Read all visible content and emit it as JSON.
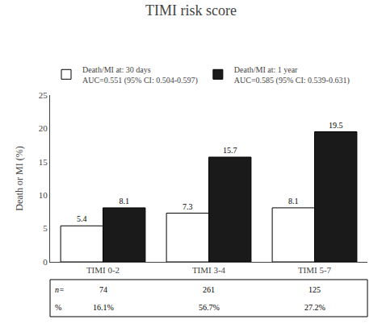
{
  "chart_data": {
    "type": "bar",
    "title": "TIMI risk score",
    "ylabel": "Death or MI (%)",
    "categories": [
      "TIMI 0-2",
      "TIMI 3-4",
      "TIMI 5-7"
    ],
    "series": [
      {
        "name": "Death/MI at: 30 days\nAUC=0.551 (95% CI: 0.504-0.597)",
        "color": "#ffffff",
        "values": [
          5.4,
          7.3,
          8.1
        ]
      },
      {
        "name": "Death/MI at: 1 year\nAUC=0.585 (95% CI: 0.539-0.631)",
        "color": "#1a1a1a",
        "values": [
          8.1,
          15.7,
          19.5
        ]
      }
    ],
    "ylim": [
      0,
      25
    ],
    "yticks": [
      0,
      5,
      10,
      15,
      20,
      25
    ],
    "grid": false,
    "legend": "top",
    "data_labels": true,
    "table": [
      {
        "label": "n=",
        "values": [
          74,
          261,
          125
        ]
      },
      {
        "label": "%",
        "values": [
          16.1,
          56.7,
          27.2
        ],
        "value_labels": [
          "16.1%",
          "56.7%",
          "27.2%"
        ]
      }
    ]
  }
}
